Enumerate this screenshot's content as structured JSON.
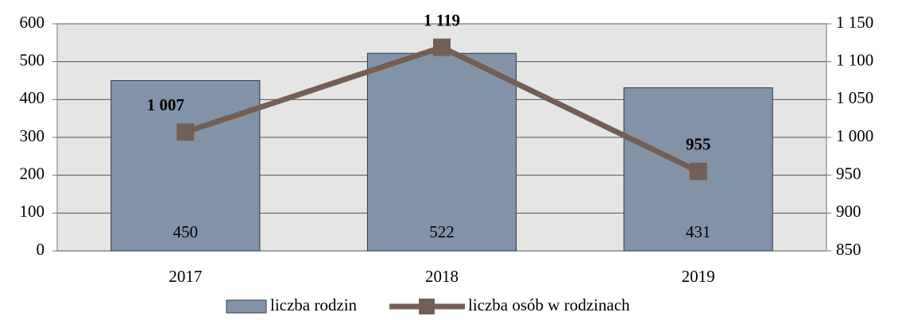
{
  "chart_data": {
    "type": "bar",
    "categories": [
      "2017",
      "2018",
      "2019"
    ],
    "series": [
      {
        "name": "liczba rodzin",
        "type": "bar",
        "color": "#8393a7",
        "values": [
          450,
          522,
          431
        ]
      },
      {
        "name": "liczba osób w rodzinach",
        "type": "line",
        "axis": "y2",
        "color": "#735f56",
        "values": [
          1007,
          1119,
          955
        ],
        "value_labels": [
          "1 007",
          "1 119",
          "955"
        ]
      }
    ],
    "ylim": [
      0,
      600
    ],
    "yticks": [
      0,
      100,
      200,
      300,
      400,
      500,
      600
    ],
    "y2lim": [
      850,
      1150
    ],
    "y2ticks": [
      850,
      900,
      950,
      {
        "value": 1000,
        "label": "1 000"
      },
      {
        "value": 1050,
        "label": "1 050"
      },
      {
        "value": 1100,
        "label": "1 100"
      },
      {
        "value": 1150,
        "label": "1 150"
      }
    ],
    "grid": true,
    "legend": "bottom"
  }
}
